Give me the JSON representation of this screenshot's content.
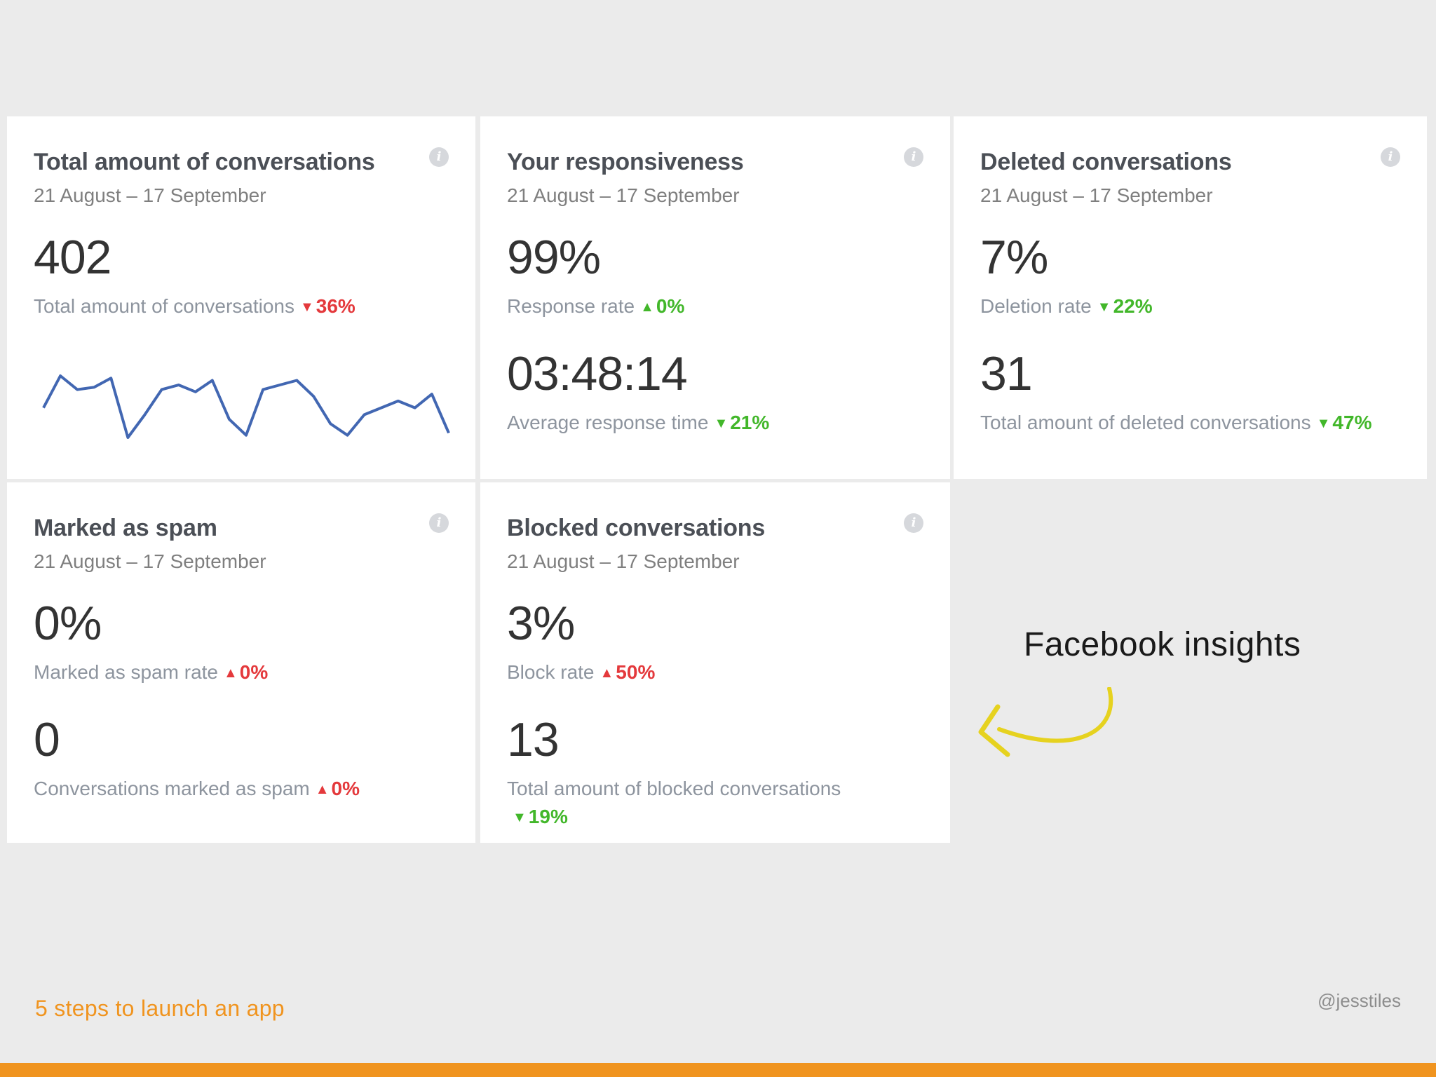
{
  "cards": {
    "total": {
      "title": "Total amount of conversations",
      "date_range": "21 August – 17 September",
      "value": "402",
      "label": "Total amount of conversations",
      "change": "36%",
      "sparkline": [
        55,
        69,
        63,
        64,
        68,
        42,
        52,
        63,
        65,
        62,
        67,
        50,
        43,
        63,
        65,
        67,
        60,
        48,
        43,
        52,
        55,
        58,
        55,
        61,
        44
      ]
    },
    "responsiveness": {
      "title": "Your responsiveness",
      "date_range": "21 August – 17 September",
      "value1": "99%",
      "label1": "Response rate",
      "change1": "0%",
      "value2": "03:48:14",
      "label2": "Average response time",
      "change2": "21%"
    },
    "deleted": {
      "title": "Deleted conversations",
      "date_range": "21 August – 17 September",
      "value1": "7%",
      "label1": "Deletion rate",
      "change1": "22%",
      "value2": "31",
      "label2": "Total amount of deleted conversations",
      "change2": "47%"
    },
    "spam": {
      "title": "Marked as spam",
      "date_range": "21 August – 17 September",
      "value1": "0%",
      "label1": "Marked as spam rate",
      "change1": "0%",
      "value2": "0",
      "label2": "Conversations marked as spam",
      "change2": "0%"
    },
    "blocked": {
      "title": "Blocked conversations",
      "date_range": "21 August – 17 September",
      "value1": "3%",
      "label1": "Block rate",
      "change1": "50%",
      "value2": "13",
      "label2": "Total amount of blocked conversations",
      "change2": "19%"
    }
  },
  "annotation": {
    "text": "Facebook insights"
  },
  "footer": {
    "title": "5 steps to launch an app",
    "handle": "@jesstiles"
  },
  "colors": {
    "negative": "#e4393c",
    "positive": "#42b72a",
    "accent": "#f0941f",
    "sparkline": "#4267b2",
    "arrow": "#e6d21f"
  },
  "icons": {
    "info": "info-icon",
    "up": "triangle-up-icon",
    "down": "triangle-down-icon",
    "arrow": "curved-arrow-icon"
  }
}
